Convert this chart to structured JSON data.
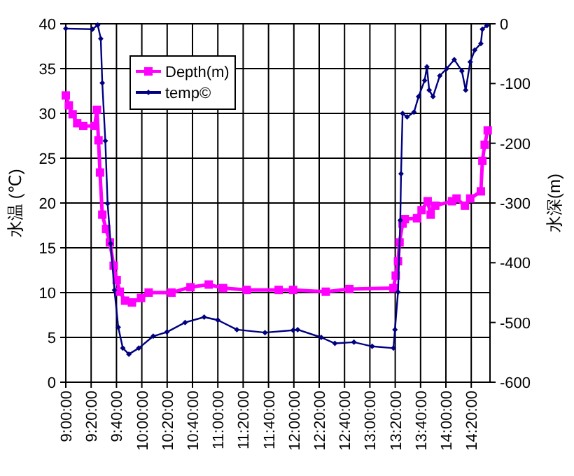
{
  "chart_data": {
    "type": "line",
    "ylabel": "水温 (℃)",
    "y2label": "水深(m)",
    "xlim": [
      9,
      14.58
    ],
    "xticks": [
      {
        "value": 9.0,
        "label": "9:00:00"
      },
      {
        "value": 9.3333,
        "label": "9:20:00"
      },
      {
        "value": 9.6667,
        "label": "9:40:00"
      },
      {
        "value": 10.0,
        "label": "10:00:00"
      },
      {
        "value": 10.3333,
        "label": "10:20:00"
      },
      {
        "value": 10.6667,
        "label": "10:40:00"
      },
      {
        "value": 11.0,
        "label": "11:00:00"
      },
      {
        "value": 11.3333,
        "label": "11:20:00"
      },
      {
        "value": 11.6667,
        "label": "11:40:00"
      },
      {
        "value": 12.0,
        "label": "12:00:00"
      },
      {
        "value": 12.3333,
        "label": "12:20:00"
      },
      {
        "value": 12.6667,
        "label": "12:40:00"
      },
      {
        "value": 13.0,
        "label": "13:00:00"
      },
      {
        "value": 13.3333,
        "label": "13:20:00"
      },
      {
        "value": 13.6667,
        "label": "13:40:00"
      },
      {
        "value": 14.0,
        "label": "14:00:00"
      },
      {
        "value": 14.3333,
        "label": "14:20:00"
      }
    ],
    "ylim": [
      0,
      40
    ],
    "yticks": [
      0,
      5,
      10,
      15,
      20,
      25,
      30,
      35,
      40
    ],
    "y2lim": [
      -600,
      0
    ],
    "y2ticks": [
      -600,
      -500,
      -400,
      -300,
      -200,
      -100,
      0
    ],
    "grid": true,
    "legend": "top left",
    "series": [
      {
        "name": "Depth(m)",
        "color": "#ff00ff",
        "marker": "square",
        "x": [
          9.0,
          9.04,
          9.09,
          9.15,
          9.23,
          9.38,
          9.41,
          9.43,
          9.45,
          9.48,
          9.53,
          9.58,
          9.63,
          9.67,
          9.71,
          9.78,
          9.87,
          9.99,
          10.09,
          10.39,
          10.64,
          10.88,
          11.07,
          11.38,
          11.8,
          11.99,
          12.42,
          12.73,
          13.31,
          13.34,
          13.37,
          13.39,
          13.43,
          13.46,
          13.62,
          13.68,
          13.76,
          13.8,
          13.86,
          14.08,
          14.14,
          14.25,
          14.32,
          14.46,
          14.48,
          14.51,
          14.55
        ],
        "values": [
          32.0,
          30.9,
          29.9,
          28.9,
          28.6,
          28.6,
          30.4,
          27.0,
          23.4,
          18.7,
          17.1,
          15.6,
          13.0,
          11.4,
          10.1,
          9.1,
          8.9,
          9.4,
          10.0,
          10.0,
          10.6,
          10.9,
          10.5,
          10.3,
          10.3,
          10.3,
          10.1,
          10.4,
          10.5,
          11.9,
          13.5,
          15.6,
          17.7,
          18.2,
          18.3,
          19.2,
          20.2,
          18.7,
          19.7,
          20.2,
          20.5,
          19.7,
          20.5,
          21.3,
          24.7,
          26.5,
          28.1
        ]
      },
      {
        "name": "temp©",
        "color": "#000080",
        "marker": "diamond",
        "axis": "y2",
        "x": [
          9.0,
          9.35,
          9.42,
          9.46,
          9.48,
          9.52,
          9.55,
          9.59,
          9.64,
          9.69,
          9.75,
          9.83,
          9.96,
          10.15,
          10.33,
          10.57,
          10.82,
          11.0,
          11.25,
          11.62,
          11.99,
          12.05,
          12.36,
          12.54,
          12.79,
          13.03,
          13.31,
          13.33,
          13.37,
          13.4,
          13.41,
          13.43,
          13.49,
          13.58,
          13.64,
          13.72,
          13.75,
          13.78,
          13.83,
          13.92,
          14.01,
          14.11,
          14.21,
          14.26,
          14.32,
          14.38,
          14.46,
          14.48,
          14.54
        ],
        "values": [
          -8,
          -9,
          -2,
          -25,
          -99,
          -196,
          -301,
          -368,
          -446,
          -508,
          -543,
          -553,
          -543,
          -523,
          -516,
          -500,
          -491,
          -496,
          -512,
          -517,
          -513,
          -512,
          -525,
          -535,
          -533,
          -540,
          -543,
          -512,
          -449,
          -329,
          -251,
          -150,
          -156,
          -148,
          -122,
          -95,
          -72,
          -111,
          -122,
          -87,
          -75,
          -60,
          -79,
          -111,
          -64,
          -44,
          -33,
          -9,
          -3
        ]
      }
    ]
  }
}
